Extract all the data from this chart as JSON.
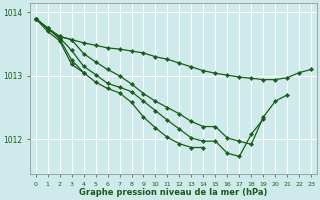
{
  "title": "Graphe pression niveau de la mer (hPa)",
  "background_color": "#ceeaea",
  "grid_color": "#ffffff",
  "line_color": "#1a5c1a",
  "marker_color": "#1a5c1a",
  "xlim": [
    -0.5,
    23.5
  ],
  "ylim": [
    1011.45,
    1014.15
  ],
  "yticks": [
    1012,
    1013,
    1014
  ],
  "ytick_labels": [
    "1012",
    "1013",
    "1014"
  ],
  "xticks": [
    0,
    1,
    2,
    3,
    4,
    5,
    6,
    7,
    8,
    9,
    10,
    11,
    12,
    13,
    14,
    15,
    16,
    17,
    18,
    19,
    20,
    21,
    22,
    23
  ],
  "series": [
    [
      1013.9,
      1013.75,
      1013.62,
      1013.57,
      1013.52,
      1013.48,
      1013.44,
      1013.42,
      1013.39,
      1013.36,
      1013.3,
      1013.26,
      1013.2,
      1013.14,
      1013.08,
      1013.04,
      1013.01,
      1012.98,
      1012.96,
      1012.94,
      1012.94,
      1012.97,
      1013.05,
      1013.1
    ],
    [
      1013.9,
      1013.75,
      1013.62,
      1013.57,
      1013.35,
      1013.22,
      1013.1,
      1013.0,
      1012.87,
      1012.72,
      1012.6,
      1012.5,
      1012.4,
      1012.28,
      1012.2,
      1012.2,
      1012.02,
      1011.97,
      1011.92,
      1012.35,
      1012.6,
      1012.7,
      null,
      null
    ],
    [
      1013.9,
      1013.75,
      1013.6,
      1013.4,
      1013.15,
      1013.02,
      1012.88,
      1012.82,
      1012.75,
      1012.6,
      1012.45,
      1012.3,
      1012.16,
      1012.02,
      1011.97,
      1011.97,
      1011.78,
      1011.73,
      1012.08,
      1012.32,
      null,
      null,
      null,
      null
    ],
    [
      1013.9,
      1013.75,
      1013.58,
      1013.25,
      1013.05,
      1012.9,
      1012.8,
      1012.73,
      1012.58,
      1012.35,
      1012.18,
      1012.03,
      1011.93,
      1011.87,
      1011.87,
      null,
      null,
      null,
      null,
      null,
      null,
      null,
      null,
      null
    ],
    [
      1013.9,
      1013.7,
      1013.55,
      1013.18,
      1013.05,
      null,
      null,
      null,
      null,
      null,
      null,
      null,
      null,
      null,
      null,
      null,
      null,
      null,
      null,
      null,
      null,
      null,
      null,
      null
    ]
  ]
}
